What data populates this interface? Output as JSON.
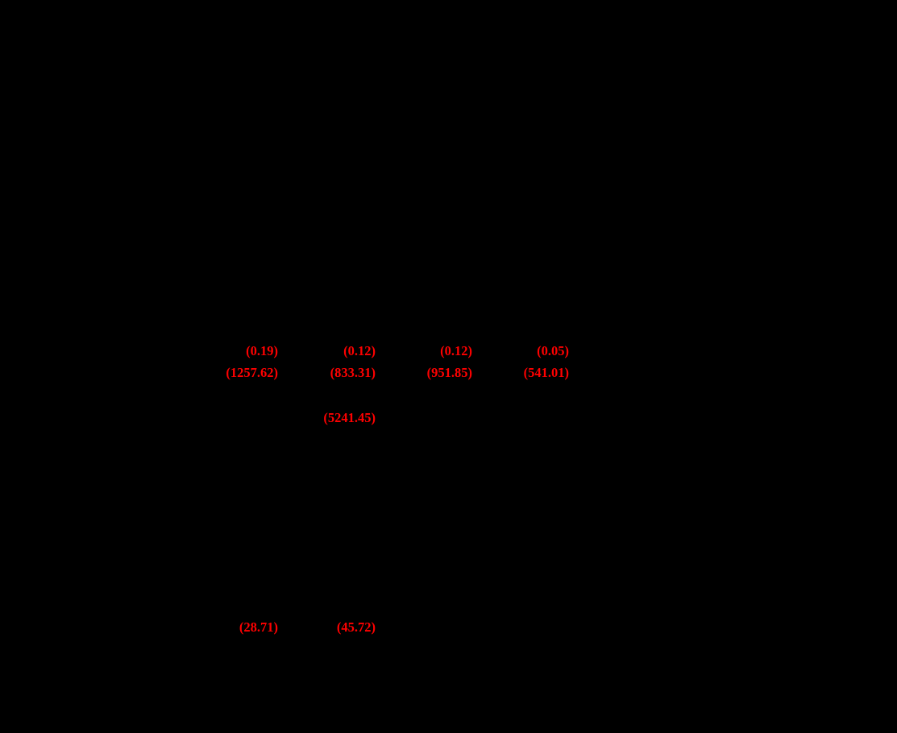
{
  "colors": {
    "background": "#000000",
    "negative_value_red": "#ff0000"
  },
  "table": {
    "rows": [
      {
        "cells": [
          {
            "col": 1,
            "text": "(0.19)"
          },
          {
            "col": 2,
            "text": "(0.12)"
          },
          {
            "col": 3,
            "text": "(0.12)"
          },
          {
            "col": 4,
            "text": "(0.05)"
          }
        ]
      },
      {
        "cells": [
          {
            "col": 1,
            "text": "(1257.62)"
          },
          {
            "col": 2,
            "text": "(833.31)"
          },
          {
            "col": 3,
            "text": "(951.85)"
          },
          {
            "col": 4,
            "text": "(541.01)"
          }
        ]
      },
      {
        "cells": [
          {
            "col": 2,
            "text": "(5241.45)"
          }
        ]
      },
      {
        "cells": [
          {
            "col": 1,
            "text": "(28.71)"
          },
          {
            "col": 2,
            "text": "(45.72)"
          }
        ]
      }
    ]
  }
}
